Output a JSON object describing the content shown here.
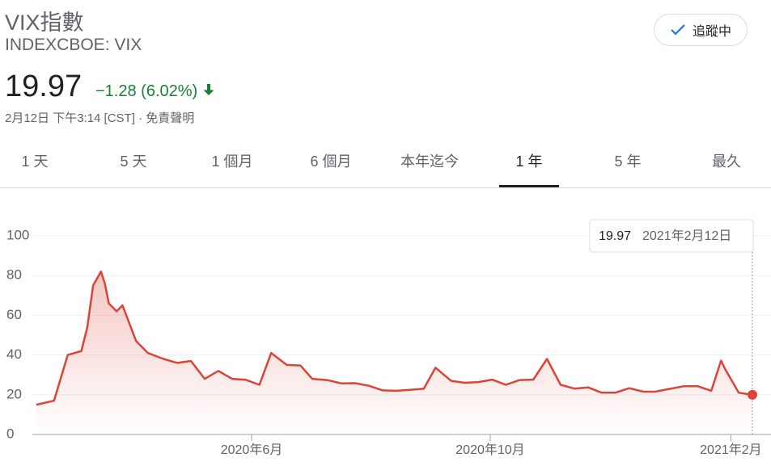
{
  "header": {
    "title": "VIX指數",
    "ticker": "INDEXCBOE: VIX",
    "price": "19.97",
    "change": "−1.28 (6.02%)",
    "timestamp": "2月12日 下午3:14 [CST]",
    "separator": "·",
    "disclaimer": "免責聲明",
    "follow_button": "追蹤中"
  },
  "tabs": {
    "items": [
      "1 天",
      "5 天",
      "1 個月",
      "6 個月",
      "本年迄今",
      "1 年",
      "5 年",
      "最久"
    ],
    "active": 5
  },
  "tooltip": {
    "date": "2021年2月12日"
  },
  "chart_data": {
    "type": "line",
    "color": "#db4437",
    "grid": true,
    "x": [
      "2020-02-12",
      "2020-02-21",
      "2020-02-28",
      "2020-03-06",
      "2020-03-09",
      "2020-03-12",
      "2020-03-16",
      "2020-03-18",
      "2020-03-20",
      "2020-03-24",
      "2020-03-27",
      "2020-04-03",
      "2020-04-09",
      "2020-04-17",
      "2020-04-24",
      "2020-05-01",
      "2020-05-08",
      "2020-05-15",
      "2020-05-22",
      "2020-05-29",
      "2020-06-05",
      "2020-06-11",
      "2020-06-19",
      "2020-06-26",
      "2020-07-02",
      "2020-07-10",
      "2020-07-17",
      "2020-07-24",
      "2020-07-31",
      "2020-08-07",
      "2020-08-14",
      "2020-08-21",
      "2020-08-28",
      "2020-09-03",
      "2020-09-11",
      "2020-09-18",
      "2020-09-25",
      "2020-10-02",
      "2020-10-09",
      "2020-10-16",
      "2020-10-23",
      "2020-10-30",
      "2020-11-06",
      "2020-11-13",
      "2020-11-20",
      "2020-11-27",
      "2020-12-04",
      "2020-12-11",
      "2020-12-18",
      "2020-12-24",
      "2020-12-31",
      "2021-01-08",
      "2021-01-15",
      "2021-01-22",
      "2021-01-27",
      "2021-01-29",
      "2021-02-05",
      "2021-02-12"
    ],
    "values": [
      15,
      17,
      40,
      42,
      54,
      75,
      82,
      76,
      66,
      62,
      65,
      47,
      41,
      38,
      36,
      37,
      28,
      32,
      28,
      27.5,
      25,
      41,
      35,
      34.7,
      28,
      27.3,
      25.7,
      25.8,
      24.5,
      22.2,
      22,
      22.5,
      23,
      33.6,
      27,
      26,
      26.4,
      27.6,
      25,
      27.4,
      27.6,
      38,
      25,
      23.1,
      23.7,
      21,
      21,
      23.3,
      21.6,
      21.5,
      22.8,
      24.3,
      24.3,
      22,
      37.2,
      33.1,
      21,
      19.97
    ],
    "xlim": [
      "2020-02-12",
      "2021-02-12"
    ],
    "xticks": [
      {
        "value": "2020-06-01",
        "label": "2020年6月"
      },
      {
        "value": "2020-10-01",
        "label": "2020年10月"
      },
      {
        "value": "2021-02-01",
        "label": "2021年2月"
      }
    ],
    "ylim": [
      0,
      100
    ],
    "yticks": [
      0,
      20,
      40,
      60,
      80,
      100
    ]
  }
}
